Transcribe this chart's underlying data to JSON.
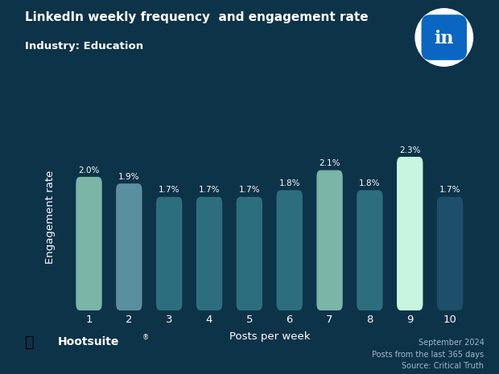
{
  "title": "LinkedIn weekly frequency  and engagement rate",
  "subtitle": "Industry: Education",
  "xlabel": "Posts per week",
  "ylabel": "Engagement rate",
  "categories": [
    1,
    2,
    3,
    4,
    5,
    6,
    7,
    8,
    9,
    10
  ],
  "values": [
    2.0,
    1.9,
    1.7,
    1.7,
    1.7,
    1.8,
    2.1,
    1.8,
    2.3,
    1.7
  ],
  "bar_colors": [
    "#7ab5a8",
    "#5a8fa0",
    "#2d6e7e",
    "#2d6e7e",
    "#2d6e7e",
    "#2d6e7e",
    "#7ab5a8",
    "#2d6e7e",
    "#c8f5e0",
    "#1d4e6a"
  ],
  "background_color": "#0d3349",
  "text_color": "#ffffff",
  "footer_text_color": "#a0b8c8",
  "footer_text": "September 2024\nPosts from the last 365 days\nSource: Critical Truth",
  "ylim": [
    0,
    2.8
  ],
  "bar_width": 0.65
}
